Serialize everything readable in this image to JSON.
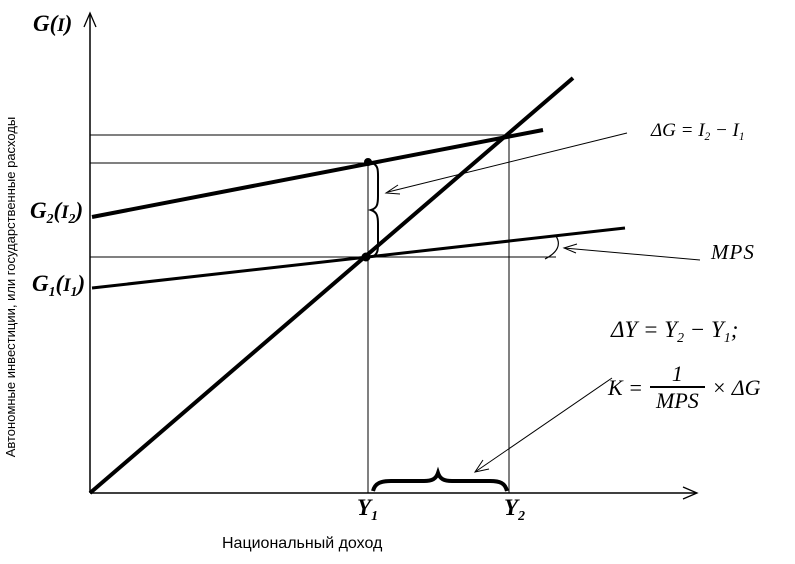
{
  "page": {
    "background": "#ffffff",
    "ink": "#000000"
  },
  "axis": {
    "y_title": [
      {
        "t": "G("
      },
      {
        "t": "I",
        "c": "small"
      },
      {
        "t": ")"
      }
    ],
    "y_caption": "Автономные инвестиции, или государственные расходы",
    "x_caption": "Национальный доход"
  },
  "curve_labels": {
    "g2": [
      {
        "t": "G"
      },
      {
        "t": "2",
        "c": "sub"
      },
      {
        "t": "("
      },
      {
        "t": "I",
        "c": "small"
      },
      {
        "t": "2",
        "c": "sub"
      },
      {
        "t": ")"
      }
    ],
    "g1": [
      {
        "t": "G"
      },
      {
        "t": "1",
        "c": "sub"
      },
      {
        "t": "("
      },
      {
        "t": "I",
        "c": "small"
      },
      {
        "t": "1",
        "c": "sub"
      },
      {
        "t": ")"
      }
    ]
  },
  "x_ticks": {
    "y1": [
      {
        "t": "Y"
      },
      {
        "t": "1",
        "c": "sub"
      }
    ],
    "y2": [
      {
        "t": "Y"
      },
      {
        "t": "2",
        "c": "sub"
      }
    ]
  },
  "annotations": {
    "mps": "MPS",
    "delta_g": [
      {
        "t": "ΔG = I"
      },
      {
        "t": "2",
        "c": "sub"
      },
      {
        "t": " − I"
      },
      {
        "t": "1",
        "c": "sub"
      }
    ],
    "delta_y": [
      {
        "t": "ΔY = Y"
      },
      {
        "t": "2",
        "c": "sub"
      },
      {
        "t": " − Y"
      },
      {
        "t": "1",
        "c": "sub"
      },
      {
        "t": ";"
      }
    ],
    "k_formula": {
      "lhs": "K =",
      "numerator": "1",
      "denominator": "MPS",
      "rhs": "× ΔG"
    }
  },
  "chart_data": {
    "type": "line",
    "title": "",
    "xlabel": "Национальный доход",
    "ylabel": "Автономные инвестиции, или государственные расходы",
    "y_axis_head_label": "G(I)",
    "x_tick_labels": [
      "Y1",
      "Y2"
    ],
    "x_tick_positions_pct": [
      46,
      69
    ],
    "axis_note": "qualitative diagram, no numeric scale; coordinates normalized 0-100 of axis length",
    "grid": false,
    "legend": "none, curves labeled at left axis",
    "series": [
      {
        "name": "45-degree line (Y = G)",
        "points": [
          [
            0,
            0
          ],
          [
            79,
            86
          ]
        ]
      },
      {
        "name": "G2(I2)",
        "points": [
          [
            0,
            57
          ],
          [
            75,
            75
          ]
        ]
      },
      {
        "name": "G1(I1)",
        "points": [
          [
            0,
            42
          ],
          [
            88,
            55
          ]
        ]
      }
    ],
    "key_points": [
      {
        "name": "equilibrium of G1 with 45-degree line",
        "x_label": "Y1",
        "x": 46,
        "y": 49
      },
      {
        "name": "G2 level above Y1 (marked point)",
        "x_label": "Y1",
        "x": 46,
        "y": 68
      },
      {
        "name": "equilibrium of G2 with 45-degree line",
        "x_label": "Y2",
        "x": 69,
        "y": 74
      }
    ],
    "reference_lines": {
      "horizontal_levels_pct": [
        74,
        68,
        49
      ],
      "vertical_at_pct": [
        46,
        69
      ]
    },
    "annotations": [
      "ΔG = I2 − I1 (vertical brace between G1 and G2 at Y1)",
      "MPS (slope angle arc of G1 line)",
      "ΔY = Y2 − Y1;",
      "K = 1/MPS × ΔG (horizontal brace from Y1 to Y2)"
    ]
  }
}
